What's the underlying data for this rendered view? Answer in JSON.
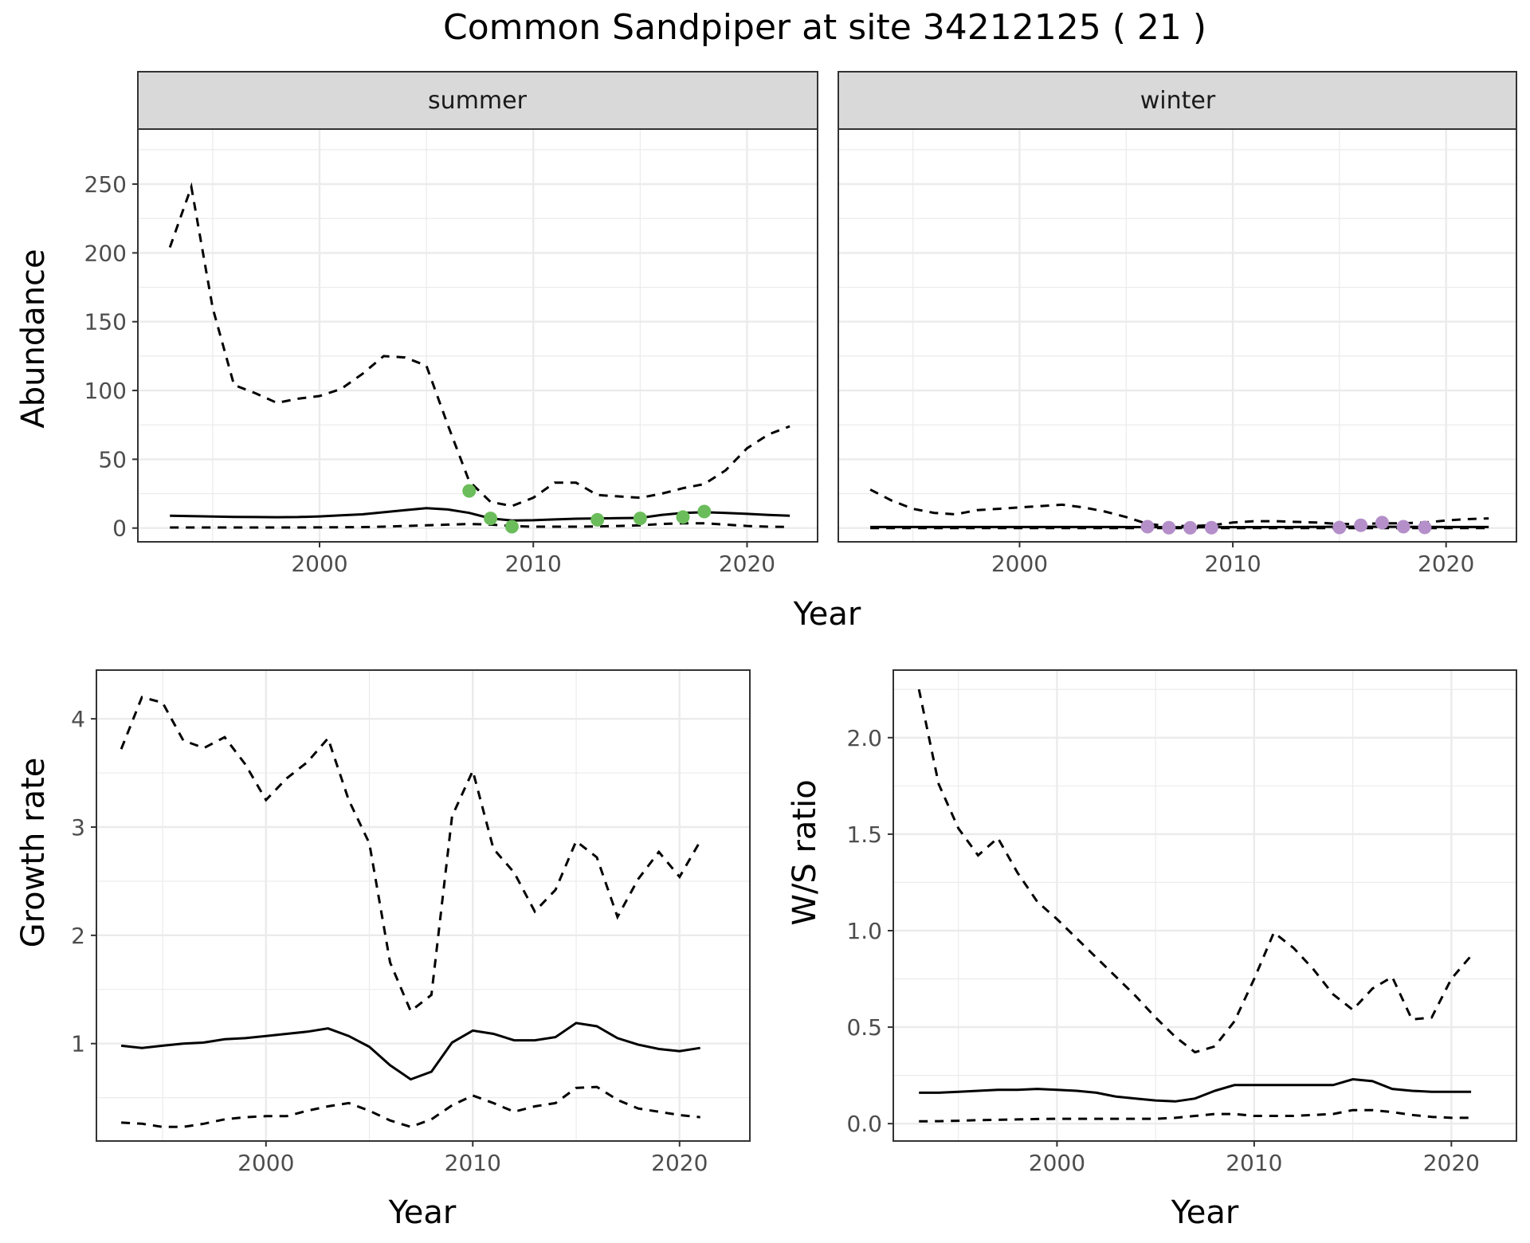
{
  "title": "Common Sandpiper at site 34212125 ( 21 )",
  "colors": {
    "summer_points": "#6bbd5b",
    "winter_points": "#b48fc9",
    "strip_fill": "#d9d9d9",
    "grid": "#ebebeb"
  },
  "chart_data": [
    {
      "type": "line",
      "panel": "summer",
      "facet_label": "summer",
      "xlabel": "Year",
      "ylabel": "Abundance",
      "xlim": [
        1991.5,
        2023.3
      ],
      "ylim": [
        -10,
        290
      ],
      "x_ticks": [
        2000,
        2010,
        2020
      ],
      "y_ticks": [
        0,
        50,
        100,
        150,
        200,
        250
      ],
      "grid": true,
      "series": [
        {
          "role": "upper",
          "style": "dashed",
          "x": [
            1993,
            1994,
            1995,
            1996,
            1997,
            1998,
            1999,
            2000,
            2001,
            2002,
            2003,
            2004,
            2005,
            2006,
            2007,
            2008,
            2009,
            2010,
            2011,
            2012,
            2013,
            2014,
            2015,
            2016,
            2017,
            2018,
            2019,
            2020,
            2021,
            2022
          ],
          "values": [
            204,
            248,
            160,
            104,
            98,
            91,
            94,
            96,
            101,
            112,
            125,
            124,
            118,
            75,
            34,
            19,
            16,
            22,
            33,
            33,
            24,
            23,
            22,
            25,
            29,
            32,
            42,
            58,
            68,
            74
          ]
        },
        {
          "role": "estimate",
          "style": "solid",
          "x": [
            1993,
            1994,
            1995,
            1996,
            1997,
            1998,
            1999,
            2000,
            2001,
            2002,
            2003,
            2004,
            2005,
            2006,
            2007,
            2008,
            2009,
            2010,
            2011,
            2012,
            2013,
            2014,
            2015,
            2016,
            2017,
            2018,
            2019,
            2020,
            2021,
            2022
          ],
          "values": [
            9,
            8.7,
            8.4,
            8.1,
            8,
            7.9,
            8,
            8.5,
            9.2,
            10,
            11.5,
            13,
            14.5,
            13.5,
            11,
            7,
            5.5,
            5.7,
            6.3,
            6.8,
            7,
            7.2,
            7.4,
            9.5,
            11,
            11.5,
            11,
            10.3,
            9.5,
            9
          ]
        },
        {
          "role": "lower",
          "style": "dashed",
          "x": [
            1993,
            1994,
            1995,
            1996,
            1997,
            1998,
            1999,
            2000,
            2001,
            2002,
            2003,
            2004,
            2005,
            2006,
            2007,
            2008,
            2009,
            2010,
            2011,
            2012,
            2013,
            2014,
            2015,
            2016,
            2017,
            2018,
            2019,
            2020,
            2021,
            2022
          ],
          "values": [
            0.4,
            0.4,
            0.4,
            0.4,
            0.4,
            0.4,
            0.4,
            0.5,
            0.6,
            0.7,
            1,
            1.5,
            2,
            2.5,
            3,
            2.5,
            1.5,
            1,
            1,
            1,
            1.2,
            1.5,
            2,
            3,
            3.5,
            3.5,
            2.5,
            1.5,
            1,
            0.8
          ]
        }
      ],
      "points": {
        "x": [
          2007,
          2008,
          2009,
          2013,
          2015,
          2017,
          2018
        ],
        "values": [
          27,
          7,
          1,
          6,
          7,
          8,
          12
        ]
      }
    },
    {
      "type": "line",
      "panel": "winter",
      "facet_label": "winter",
      "xlabel": "Year",
      "ylim": [
        -10,
        290
      ],
      "xlim": [
        1991.5,
        2023.3
      ],
      "x_ticks": [
        2000,
        2010,
        2020
      ],
      "grid": true,
      "series": [
        {
          "role": "upper",
          "style": "dashed",
          "x": [
            1993,
            1994,
            1995,
            1996,
            1997,
            1998,
            1999,
            2000,
            2001,
            2002,
            2003,
            2004,
            2005,
            2006,
            2007,
            2008,
            2009,
            2010,
            2011,
            2012,
            2013,
            2014,
            2015,
            2016,
            2017,
            2018,
            2019,
            2020,
            2021,
            2022
          ],
          "values": [
            28,
            20,
            14,
            11,
            10,
            13,
            14,
            15,
            16,
            17,
            15,
            12,
            8,
            3,
            1.5,
            1.5,
            2,
            4,
            5,
            5,
            4.5,
            4,
            3,
            3,
            3.5,
            3.5,
            4,
            5.5,
            6.5,
            7
          ]
        },
        {
          "role": "estimate",
          "style": "solid",
          "x": [
            1993,
            1996,
            2000,
            2004,
            2008,
            2012,
            2016,
            2020,
            2022
          ],
          "values": [
            0.8,
            0.8,
            0.8,
            0.8,
            0.6,
            0.7,
            1,
            0.8,
            0.8
          ]
        },
        {
          "role": "lower",
          "style": "dashed",
          "x": [
            1993,
            2000,
            2010,
            2022
          ],
          "values": [
            0,
            0,
            0,
            0
          ]
        }
      ],
      "points": {
        "x": [
          2006,
          2007,
          2008,
          2009,
          2015,
          2016,
          2017,
          2018,
          2019
        ],
        "values": [
          1,
          0.3,
          0.2,
          0.3,
          0.4,
          2,
          4,
          1,
          0.5
        ]
      }
    },
    {
      "type": "line",
      "panel": "growth",
      "xlabel": "Year",
      "ylabel": "Growth rate",
      "xlim": [
        1991.8,
        2023.4
      ],
      "ylim": [
        0.1,
        4.45
      ],
      "x_ticks": [
        2000,
        2010,
        2020
      ],
      "y_ticks": [
        1,
        2,
        3,
        4
      ],
      "grid": true,
      "series": [
        {
          "role": "upper",
          "style": "dashed",
          "x": [
            1993,
            1994,
            1995,
            1996,
            1997,
            1998,
            1999,
            2000,
            2001,
            2002,
            2003,
            2004,
            2005,
            2006,
            2007,
            2008,
            2009,
            2010,
            2011,
            2012,
            2013,
            2014,
            2015,
            2016,
            2017,
            2018,
            2019,
            2020,
            2021
          ],
          "values": [
            3.72,
            4.2,
            4.15,
            3.8,
            3.73,
            3.83,
            3.58,
            3.25,
            3.45,
            3.6,
            3.82,
            3.25,
            2.85,
            1.75,
            1.3,
            1.45,
            3.1,
            3.52,
            2.8,
            2.58,
            2.22,
            2.42,
            2.87,
            2.72,
            2.17,
            2.52,
            2.77,
            2.54,
            2.87
          ]
        },
        {
          "role": "estimate",
          "style": "solid",
          "x": [
            1993,
            1994,
            1995,
            1996,
            1997,
            1998,
            1999,
            2000,
            2001,
            2002,
            2003,
            2004,
            2005,
            2006,
            2007,
            2008,
            2009,
            2010,
            2011,
            2012,
            2013,
            2014,
            2015,
            2016,
            2017,
            2018,
            2019,
            2020,
            2021
          ],
          "values": [
            0.98,
            0.96,
            0.98,
            1,
            1.01,
            1.04,
            1.05,
            1.07,
            1.09,
            1.11,
            1.14,
            1.07,
            0.97,
            0.8,
            0.67,
            0.74,
            1.01,
            1.12,
            1.09,
            1.03,
            1.03,
            1.06,
            1.19,
            1.16,
            1.05,
            0.99,
            0.95,
            0.93,
            0.96
          ]
        },
        {
          "role": "lower",
          "style": "dashed",
          "x": [
            1993,
            1994,
            1995,
            1996,
            1997,
            1998,
            1999,
            2000,
            2001,
            2002,
            2003,
            2004,
            2005,
            2006,
            2007,
            2008,
            2009,
            2010,
            2011,
            2012,
            2013,
            2014,
            2015,
            2016,
            2017,
            2018,
            2019,
            2020,
            2021
          ],
          "values": [
            0.27,
            0.26,
            0.23,
            0.23,
            0.26,
            0.3,
            0.32,
            0.33,
            0.33,
            0.38,
            0.42,
            0.45,
            0.38,
            0.29,
            0.23,
            0.3,
            0.43,
            0.52,
            0.45,
            0.37,
            0.42,
            0.45,
            0.59,
            0.6,
            0.48,
            0.4,
            0.37,
            0.34,
            0.32
          ]
        }
      ]
    },
    {
      "type": "line",
      "panel": "ratio",
      "xlabel": "Year",
      "ylabel": "W/S ratio",
      "xlim": [
        1991.7,
        2023.3
      ],
      "ylim": [
        -0.09,
        2.35
      ],
      "x_ticks": [
        2000,
        2010,
        2020
      ],
      "y_ticks": [
        0,
        0.5,
        1,
        1.5,
        2
      ],
      "y_tick_labels": [
        "0.0",
        "0.5",
        "1.0",
        "1.5",
        "2.0"
      ],
      "grid": true,
      "series": [
        {
          "role": "upper",
          "style": "dashed",
          "x": [
            1993,
            1994,
            1995,
            1996,
            1997,
            1998,
            1999,
            2000,
            2001,
            2002,
            2003,
            2004,
            2005,
            2006,
            2007,
            2008,
            2009,
            2010,
            2011,
            2012,
            2013,
            2014,
            2015,
            2016,
            2017,
            2018,
            2019,
            2020,
            2021
          ],
          "values": [
            2.25,
            1.76,
            1.53,
            1.39,
            1.48,
            1.3,
            1.15,
            1.06,
            0.96,
            0.86,
            0.76,
            0.66,
            0.55,
            0.45,
            0.37,
            0.4,
            0.53,
            0.75,
            0.99,
            0.91,
            0.8,
            0.67,
            0.59,
            0.7,
            0.76,
            0.54,
            0.55,
            0.75,
            0.87
          ]
        },
        {
          "role": "estimate",
          "style": "solid",
          "x": [
            1993,
            1994,
            1995,
            1996,
            1997,
            1998,
            1999,
            2000,
            2001,
            2002,
            2003,
            2004,
            2005,
            2006,
            2007,
            2008,
            2009,
            2010,
            2011,
            2012,
            2013,
            2014,
            2015,
            2016,
            2017,
            2018,
            2019,
            2020,
            2021
          ],
          "values": [
            0.16,
            0.16,
            0.165,
            0.17,
            0.175,
            0.175,
            0.18,
            0.175,
            0.17,
            0.16,
            0.14,
            0.13,
            0.12,
            0.115,
            0.13,
            0.17,
            0.2,
            0.2,
            0.2,
            0.2,
            0.2,
            0.2,
            0.23,
            0.22,
            0.18,
            0.17,
            0.165,
            0.165,
            0.165
          ]
        },
        {
          "role": "lower",
          "style": "dashed",
          "x": [
            1993,
            1994,
            1995,
            1996,
            1997,
            1998,
            1999,
            2000,
            2001,
            2002,
            2003,
            2004,
            2005,
            2006,
            2007,
            2008,
            2009,
            2010,
            2011,
            2012,
            2013,
            2014,
            2015,
            2016,
            2017,
            2018,
            2019,
            2020,
            2021
          ],
          "values": [
            0.012,
            0.013,
            0.015,
            0.018,
            0.02,
            0.022,
            0.024,
            0.025,
            0.025,
            0.025,
            0.025,
            0.025,
            0.025,
            0.03,
            0.04,
            0.05,
            0.05,
            0.04,
            0.04,
            0.04,
            0.045,
            0.05,
            0.07,
            0.07,
            0.06,
            0.045,
            0.035,
            0.03,
            0.03
          ]
        }
      ]
    }
  ]
}
